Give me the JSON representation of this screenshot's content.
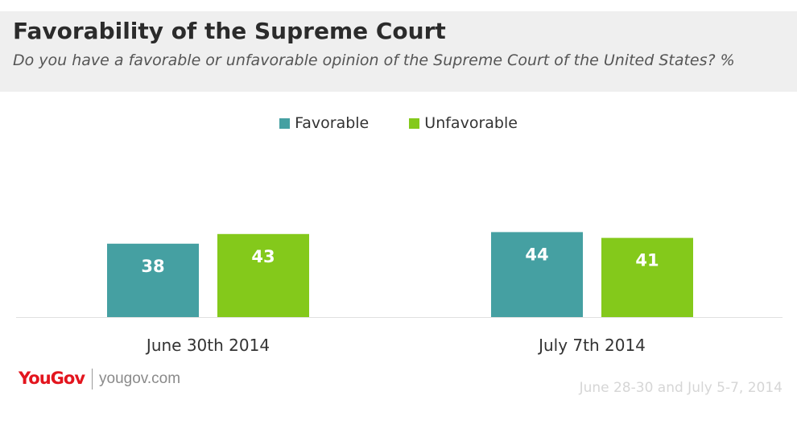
{
  "header": {
    "title": "Favorability of the Supreme Court",
    "subtitle": "Do you have a favorable or unfavorable opinion of the Supreme Court of the United States? %"
  },
  "chart_data": {
    "type": "bar",
    "categories": [
      "June 30th 2014",
      "July 7th 2014"
    ],
    "series": [
      {
        "name": "Favorable",
        "values": [
          38,
          44
        ],
        "color": "#45a0a2"
      },
      {
        "name": "Unfavorable",
        "values": [
          43,
          41
        ],
        "color": "#84c91b"
      }
    ],
    "legend_position": "top-center",
    "grid": false
  },
  "footer": {
    "logo": "YouGov",
    "url": "yougov.com",
    "note": "June 28-30 and July 5-7, 2014"
  }
}
